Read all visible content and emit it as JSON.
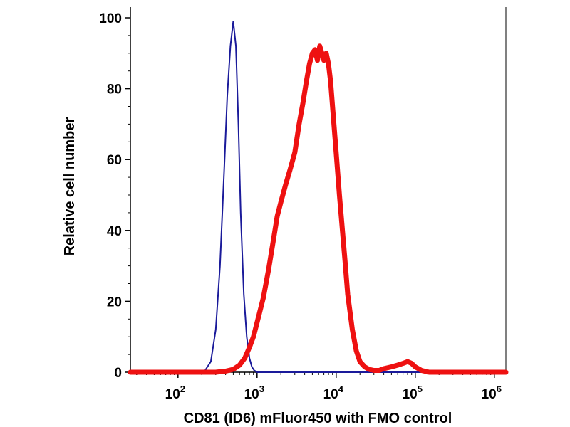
{
  "chart_data": {
    "type": "line",
    "xlabel": "CD81 (ID6) mFluor450 with FMO control",
    "ylabel": "Relative cell number",
    "x_scale": "log",
    "xlim": [
      25,
      1400000
    ],
    "ylim": [
      0,
      100
    ],
    "y_ticks": [
      0,
      20,
      40,
      60,
      80,
      100
    ],
    "x_ticks": [
      {
        "value": 100,
        "base": "10",
        "exp": "2"
      },
      {
        "value": 1000,
        "base": "10",
        "exp": "3"
      },
      {
        "value": 10000,
        "base": "10",
        "exp": "4"
      },
      {
        "value": 100000,
        "base": "10",
        "exp": "5"
      },
      {
        "value": 1000000,
        "base": "10",
        "exp": "6"
      }
    ],
    "grid": false,
    "series": [
      {
        "color": "#1a1a9a",
        "x": [
          25,
          180,
          220,
          260,
          300,
          340,
          380,
          420,
          460,
          500,
          540,
          580,
          620,
          680,
          740,
          800,
          860,
          920,
          1000,
          1400000
        ],
        "y": [
          0,
          0,
          0.5,
          3,
          12,
          30,
          55,
          78,
          92,
          99,
          92,
          70,
          45,
          22,
          10,
          4,
          1.5,
          0.5,
          0,
          0
        ]
      },
      {
        "color": "#ee1111",
        "x": [
          25,
          300,
          400,
          500,
          600,
          700,
          800,
          900,
          1000,
          1200,
          1400,
          1600,
          1800,
          2000,
          2300,
          2600,
          3000,
          3400,
          3800,
          4200,
          4600,
          5000,
          5400,
          5800,
          6200,
          6600,
          7000,
          7500,
          8000,
          8500,
          9000,
          10000,
          11000,
          12000,
          13000,
          14000,
          16000,
          18000,
          20000,
          23000,
          26000,
          30000,
          35000,
          40000,
          50000,
          60000,
          70000,
          80000,
          90000,
          100000,
          120000,
          150000,
          1400000
        ],
        "y": [
          0,
          0,
          0.3,
          0.8,
          2,
          4,
          7,
          10,
          14,
          21,
          29,
          37,
          44,
          48,
          53,
          57,
          62,
          70,
          76,
          82,
          87,
          90,
          91,
          88,
          92,
          90,
          88,
          90,
          87,
          82,
          75,
          62,
          50,
          40,
          31,
          22,
          12,
          6,
          3,
          1.5,
          0.8,
          0.5,
          0.5,
          1,
          1.5,
          2,
          2.5,
          3,
          2.5,
          1.5,
          0.5,
          0,
          0
        ]
      }
    ]
  }
}
